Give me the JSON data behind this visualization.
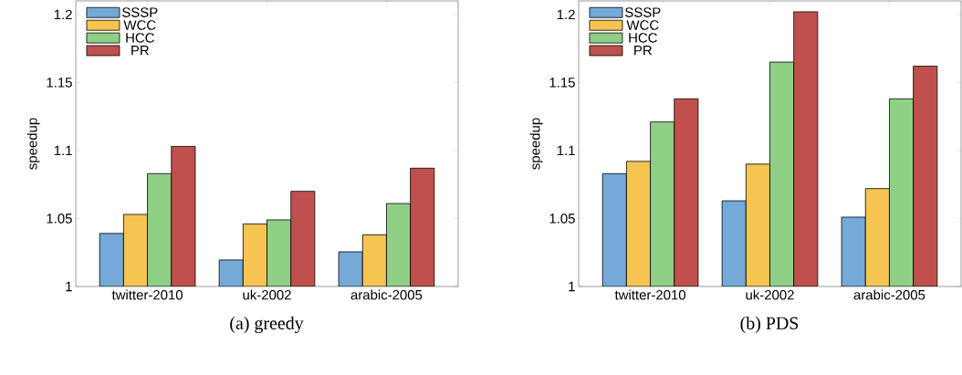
{
  "chart_data": [
    {
      "type": "bar",
      "title": "(a) greedy",
      "ylabel": "speedup",
      "categories": [
        "twitter-2010",
        "uk-2002",
        "arabic-2005"
      ],
      "ylim": [
        1,
        1.21
      ],
      "yticks": [
        1,
        1.05,
        1.1,
        1.15,
        1.2
      ],
      "legend": "top left",
      "series": [
        {
          "name": "SSSP",
          "color": "#74a9d8",
          "values": [
            1.039,
            1.0195,
            1.0255
          ]
        },
        {
          "name": "WCC",
          "color": "#f5c451",
          "values": [
            1.053,
            1.046,
            1.038
          ]
        },
        {
          "name": "HCC",
          "color": "#8fd086",
          "values": [
            1.083,
            1.049,
            1.061
          ]
        },
        {
          "name": "PR",
          "color": "#c0504d",
          "values": [
            1.103,
            1.07,
            1.087
          ]
        }
      ]
    },
    {
      "type": "bar",
      "title": "(b) PDS",
      "ylabel": "speedup",
      "categories": [
        "twitter-2010",
        "uk-2002",
        "arabic-2005"
      ],
      "ylim": [
        1,
        1.21
      ],
      "yticks": [
        1,
        1.05,
        1.1,
        1.15,
        1.2
      ],
      "legend": "top left",
      "series": [
        {
          "name": "SSSP",
          "color": "#74a9d8",
          "values": [
            1.083,
            1.063,
            1.051
          ]
        },
        {
          "name": "WCC",
          "color": "#f5c451",
          "values": [
            1.092,
            1.09,
            1.072
          ]
        },
        {
          "name": "HCC",
          "color": "#8fd086",
          "values": [
            1.121,
            1.165,
            1.138
          ]
        },
        {
          "name": "PR",
          "color": "#c0504d",
          "values": [
            1.138,
            1.202,
            1.162
          ]
        }
      ]
    }
  ]
}
